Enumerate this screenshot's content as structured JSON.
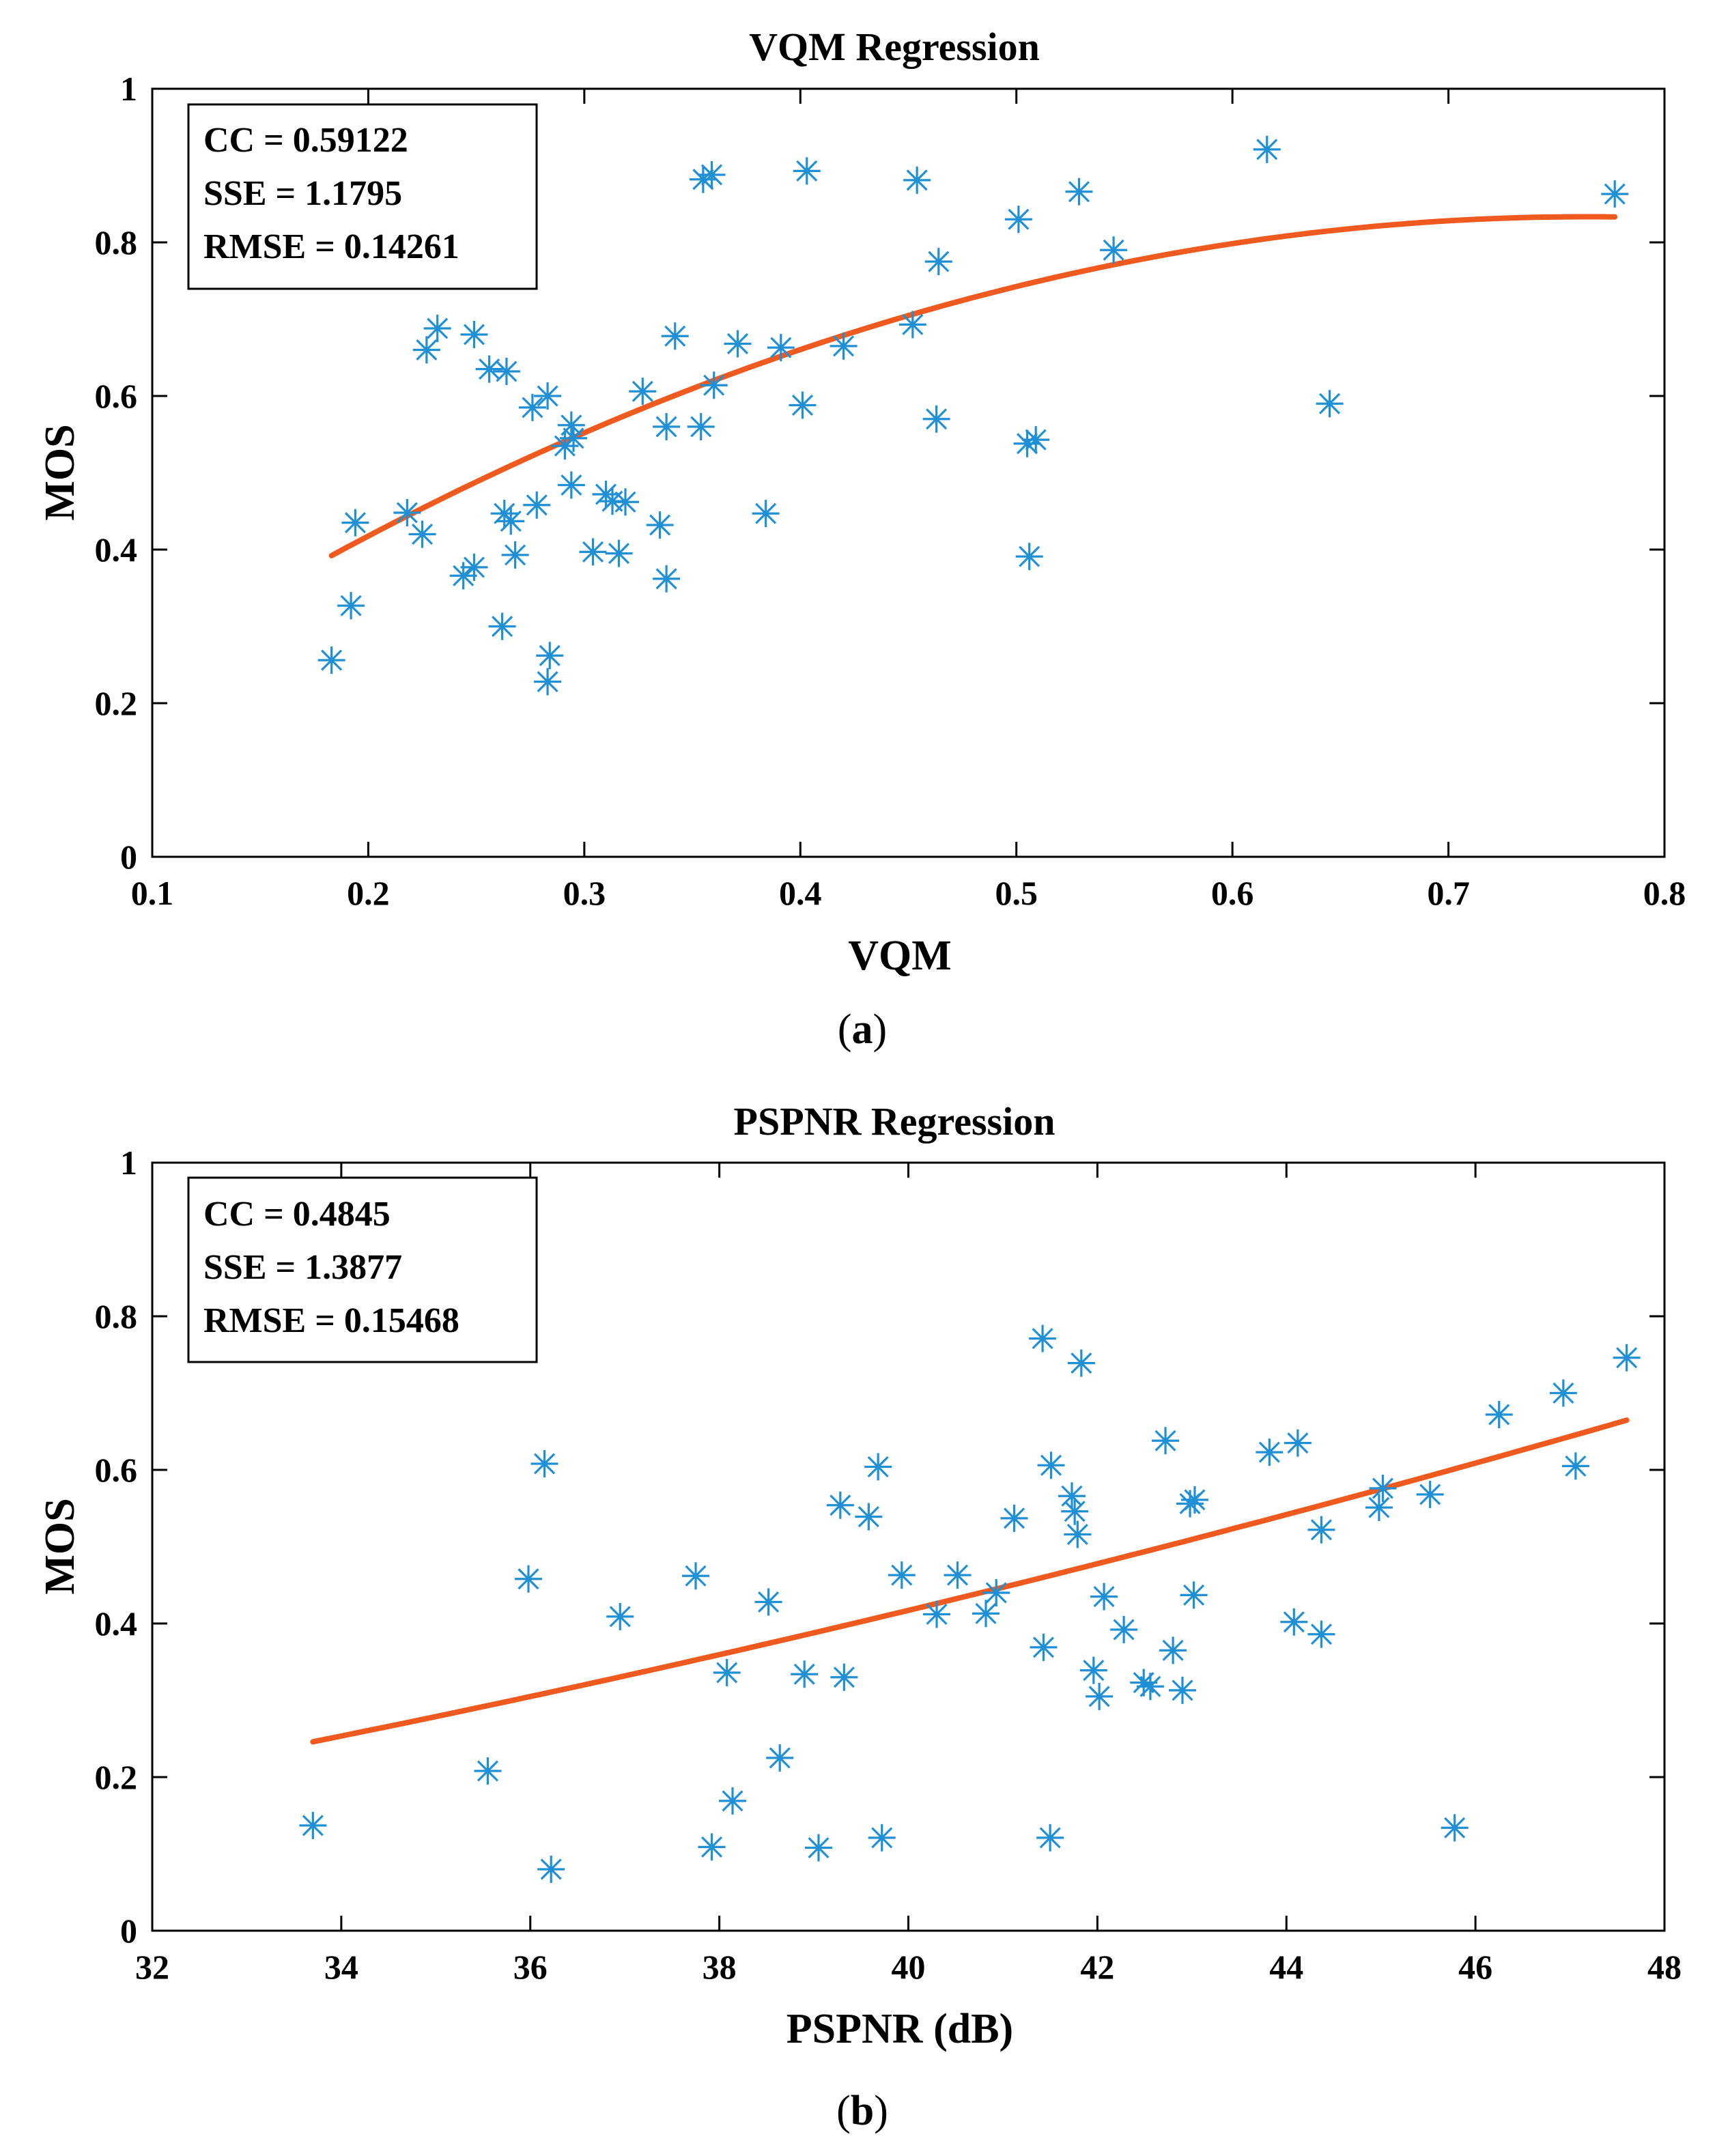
{
  "chart_data": [
    {
      "type": "scatter",
      "title": "VQM Regression",
      "xlabel": "VQM",
      "ylabel": "MOS",
      "xlim": [
        0.1,
        0.8
      ],
      "ylim": [
        0,
        1
      ],
      "xticks": [
        "0.1",
        "0.2",
        "0.3",
        "0.4",
        "0.5",
        "0.6",
        "0.7",
        "0.8"
      ],
      "yticks": [
        "0",
        "0.2",
        "0.4",
        "0.6",
        "0.8",
        "1"
      ],
      "panel_label": "a",
      "stats": [
        "CC = 0.59122",
        "SSE = 1.1795",
        "RMSE = 0.14261"
      ],
      "marker_color": "#1f8fd6",
      "fit_color": "#f05a1e",
      "fit_range": [
        0.183,
        0.777
      ],
      "fit_curve": {
        "a": 0.07,
        "b": 2.0,
        "c": -1.31
      },
      "points": [
        [
          0.183,
          0.256
        ],
        [
          0.192,
          0.327
        ],
        [
          0.194,
          0.435
        ],
        [
          0.218,
          0.448
        ],
        [
          0.225,
          0.42
        ],
        [
          0.227,
          0.66
        ],
        [
          0.232,
          0.688
        ],
        [
          0.244,
          0.366
        ],
        [
          0.249,
          0.377
        ],
        [
          0.249,
          0.68
        ],
        [
          0.256,
          0.635
        ],
        [
          0.262,
          0.3
        ],
        [
          0.263,
          0.447
        ],
        [
          0.264,
          0.632
        ],
        [
          0.266,
          0.437
        ],
        [
          0.268,
          0.393
        ],
        [
          0.276,
          0.585
        ],
        [
          0.278,
          0.458
        ],
        [
          0.283,
          0.6
        ],
        [
          0.283,
          0.228
        ],
        [
          0.284,
          0.262
        ],
        [
          0.291,
          0.535
        ],
        [
          0.294,
          0.562
        ],
        [
          0.294,
          0.484
        ],
        [
          0.295,
          0.545
        ],
        [
          0.304,
          0.397
        ],
        [
          0.31,
          0.472
        ],
        [
          0.313,
          0.463
        ],
        [
          0.316,
          0.395
        ],
        [
          0.319,
          0.462
        ],
        [
          0.327,
          0.606
        ],
        [
          0.335,
          0.432
        ],
        [
          0.338,
          0.56
        ],
        [
          0.338,
          0.362
        ],
        [
          0.342,
          0.678
        ],
        [
          0.354,
          0.56
        ],
        [
          0.355,
          0.882
        ],
        [
          0.359,
          0.888
        ],
        [
          0.36,
          0.614
        ],
        [
          0.371,
          0.668
        ],
        [
          0.384,
          0.447
        ],
        [
          0.391,
          0.663
        ],
        [
          0.401,
          0.588
        ],
        [
          0.403,
          0.893
        ],
        [
          0.42,
          0.665
        ],
        [
          0.452,
          0.693
        ],
        [
          0.454,
          0.881
        ],
        [
          0.463,
          0.57
        ],
        [
          0.464,
          0.775
        ],
        [
          0.501,
          0.83
        ],
        [
          0.505,
          0.538
        ],
        [
          0.506,
          0.391
        ],
        [
          0.509,
          0.543
        ],
        [
          0.529,
          0.866
        ],
        [
          0.545,
          0.79
        ],
        [
          0.616,
          0.921
        ],
        [
          0.645,
          0.59
        ],
        [
          0.777,
          0.863
        ]
      ]
    },
    {
      "type": "scatter",
      "title": "PSPNR Regression",
      "xlabel": "PSPNR (dB)",
      "ylabel": "MOS",
      "xlim": [
        32,
        48
      ],
      "ylim": [
        0,
        1
      ],
      "xticks": [
        "32",
        "34",
        "36",
        "38",
        "40",
        "42",
        "44",
        "46",
        "48"
      ],
      "yticks": [
        "0",
        "0.2",
        "0.4",
        "0.6",
        "0.8",
        "1"
      ],
      "panel_label": "b",
      "stats": [
        "CC = 0.4845",
        "SSE = 1.3877",
        "RMSE = 0.15468"
      ],
      "marker_color": "#1f8fd6",
      "fit_color": "#f05a1e",
      "fit_range": [
        33.7,
        47.6
      ],
      "fit_curve": {
        "p0": 0.246,
        "p1": 0.0247,
        "p2": 0.00039,
        "x0": 33.7
      },
      "points": [
        [
          33.7,
          0.137
        ],
        [
          35.55,
          0.208
        ],
        [
          35.98,
          0.458
        ],
        [
          36.15,
          0.608
        ],
        [
          36.22,
          0.08
        ],
        [
          36.95,
          0.409
        ],
        [
          37.75,
          0.462
        ],
        [
          37.92,
          0.109
        ],
        [
          38.08,
          0.336
        ],
        [
          38.14,
          0.169
        ],
        [
          38.52,
          0.428
        ],
        [
          38.64,
          0.225
        ],
        [
          38.9,
          0.334
        ],
        [
          39.05,
          0.108
        ],
        [
          39.28,
          0.554
        ],
        [
          39.32,
          0.33
        ],
        [
          39.58,
          0.539
        ],
        [
          39.68,
          0.604
        ],
        [
          39.72,
          0.121
        ],
        [
          39.93,
          0.463
        ],
        [
          40.3,
          0.412
        ],
        [
          40.52,
          0.463
        ],
        [
          40.82,
          0.413
        ],
        [
          40.93,
          0.44
        ],
        [
          41.12,
          0.537
        ],
        [
          41.42,
          0.771
        ],
        [
          41.43,
          0.369
        ],
        [
          41.5,
          0.121
        ],
        [
          41.51,
          0.606
        ],
        [
          41.73,
          0.566
        ],
        [
          41.76,
          0.546
        ],
        [
          41.79,
          0.516
        ],
        [
          41.83,
          0.739
        ],
        [
          41.96,
          0.339
        ],
        [
          42.02,
          0.305
        ],
        [
          42.07,
          0.435
        ],
        [
          42.28,
          0.392
        ],
        [
          42.49,
          0.323
        ],
        [
          42.56,
          0.318
        ],
        [
          42.72,
          0.638
        ],
        [
          42.8,
          0.365
        ],
        [
          42.9,
          0.313
        ],
        [
          42.98,
          0.556
        ],
        [
          43.03,
          0.561
        ],
        [
          43.02,
          0.437
        ],
        [
          43.82,
          0.623
        ],
        [
          44.08,
          0.402
        ],
        [
          44.12,
          0.635
        ],
        [
          44.37,
          0.386
        ],
        [
          44.37,
          0.522
        ],
        [
          44.98,
          0.551
        ],
        [
          45.02,
          0.576
        ],
        [
          45.52,
          0.568
        ],
        [
          45.78,
          0.134
        ],
        [
          46.25,
          0.672
        ],
        [
          46.93,
          0.7
        ],
        [
          47.06,
          0.605
        ],
        [
          47.6,
          0.746
        ]
      ]
    }
  ]
}
